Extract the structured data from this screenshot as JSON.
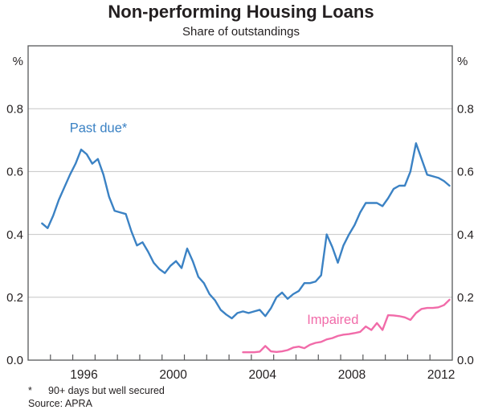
{
  "header": {
    "title": "Non-performing Housing Loans",
    "subtitle": "Share of outstandings"
  },
  "footer": {
    "footnote_marker": "*",
    "footnote_text": "90+ days but well secured",
    "source": "Source: APRA"
  },
  "colors": {
    "past_due": "#3b82c4",
    "impaired": "#f16ba9",
    "gridline": "#c6c6c6",
    "axis": "#58595b",
    "text": "#231f20"
  },
  "chart_data": {
    "type": "line",
    "title": "Non-performing Housing Loans",
    "subtitle": "Share of outstandings",
    "unit": "%",
    "frequency": "quarterly",
    "grid": "horizontal-only",
    "x_axis": {
      "min": 1994,
      "max": 2013,
      "tick_years": [
        1995,
        1996,
        1997,
        1998,
        1999,
        2000,
        2001,
        2002,
        2003,
        2004,
        2005,
        2006,
        2007,
        2008,
        2009,
        2010,
        2011,
        2012
      ],
      "label_years": [
        "1996",
        "2000",
        "2004",
        "2008",
        "2012"
      ]
    },
    "y_axis": {
      "min": 0.0,
      "max": 1.0,
      "tick_values": [
        0.0,
        0.2,
        0.4,
        0.6,
        0.8
      ],
      "tick_labels": [
        "0.0",
        "0.2",
        "0.4",
        "0.6",
        "0.8"
      ],
      "unit_label": "%",
      "shown_both_sides": true
    },
    "series": [
      {
        "name": "Past due*",
        "slug": "past-due",
        "color": "#3b82c4",
        "period_start": "Sep 1994",
        "period_end": "Dec 2012",
        "x_start": 1994.625,
        "x_step": 0.25,
        "values": [
          0.435,
          0.42,
          0.46,
          0.51,
          0.55,
          0.59,
          0.625,
          0.67,
          0.655,
          0.625,
          0.64,
          0.59,
          0.52,
          0.475,
          0.47,
          0.465,
          0.41,
          0.365,
          0.375,
          0.345,
          0.31,
          0.29,
          0.277,
          0.3,
          0.315,
          0.293,
          0.355,
          0.315,
          0.265,
          0.245,
          0.21,
          0.19,
          0.16,
          0.145,
          0.133,
          0.15,
          0.155,
          0.15,
          0.155,
          0.16,
          0.14,
          0.165,
          0.2,
          0.215,
          0.195,
          0.21,
          0.22,
          0.245,
          0.245,
          0.25,
          0.27,
          0.4,
          0.36,
          0.31,
          0.365,
          0.4,
          0.43,
          0.47,
          0.5,
          0.5,
          0.5,
          0.49,
          0.515,
          0.545,
          0.555,
          0.555,
          0.6,
          0.69,
          0.64,
          0.59,
          0.585,
          0.58,
          0.57,
          0.555
        ]
      },
      {
        "name": "Impaired",
        "slug": "impaired",
        "color": "#f16ba9",
        "period_start": "Sep 2003",
        "period_end": "Dec 2012",
        "x_start": 2003.625,
        "x_step": 0.25,
        "values": [
          0.025,
          0.025,
          0.025,
          0.027,
          0.045,
          0.028,
          0.026,
          0.028,
          0.032,
          0.04,
          0.043,
          0.038,
          0.049,
          0.055,
          0.058,
          0.066,
          0.07,
          0.077,
          0.081,
          0.083,
          0.086,
          0.09,
          0.107,
          0.096,
          0.118,
          0.096,
          0.143,
          0.142,
          0.14,
          0.136,
          0.128,
          0.15,
          0.163,
          0.166,
          0.166,
          0.168,
          0.175,
          0.192
        ]
      }
    ],
    "labels": [
      {
        "text": "Past due*",
        "slug": "past-due",
        "x": 1997.15,
        "y": 0.725,
        "color": "#3b82c4"
      },
      {
        "text": "Impaired",
        "slug": "impaired",
        "x": 2007.65,
        "y": 0.115,
        "color": "#f16ba9"
      }
    ],
    "legend_position": "inline-labels"
  }
}
